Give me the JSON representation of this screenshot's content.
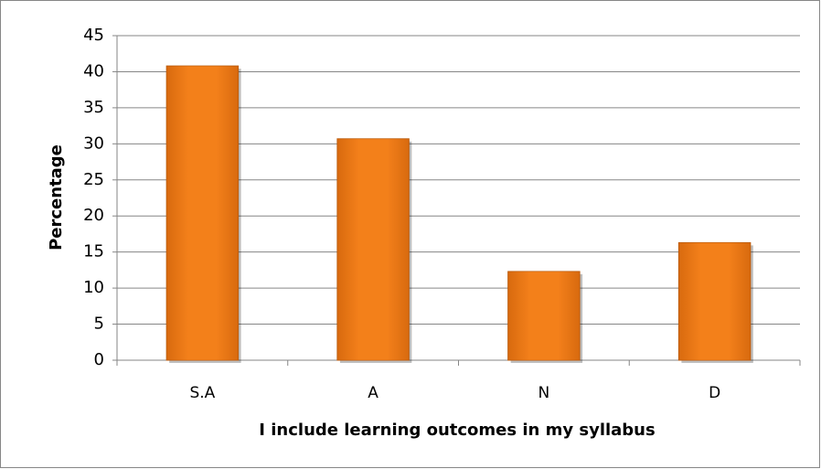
{
  "chart_data": {
    "type": "bar",
    "xlabel": "I include learning outcomes in my syllabus",
    "ylabel": "Percentage",
    "categories": [
      "S.A",
      "A",
      "N",
      "D"
    ],
    "values": [
      40.8,
      30.7,
      12.3,
      16.3
    ],
    "color": "#f07c15",
    "ylim": [
      0,
      45
    ],
    "yticks": [
      0,
      5,
      10,
      15,
      20,
      25,
      30,
      35,
      40,
      45
    ],
    "grid": true
  }
}
